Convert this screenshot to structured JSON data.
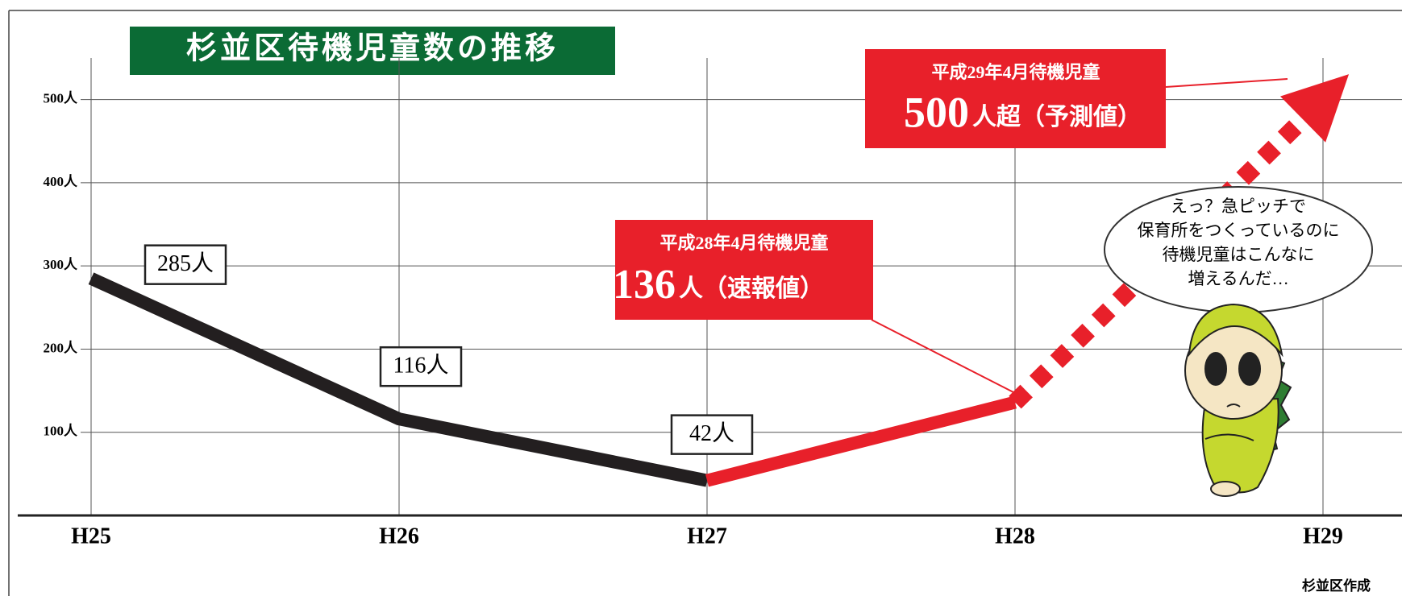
{
  "chart_data": {
    "type": "line",
    "title": "杉並区待機児童数の推移",
    "categories": [
      "H25",
      "H26",
      "H27",
      "H28",
      "H29"
    ],
    "series": [
      {
        "color": "#231f20",
        "values": [
          285,
          116,
          42,
          null,
          null
        ],
        "value_labels": [
          "285人",
          "116人",
          "42人",
          null,
          null
        ]
      },
      {
        "color": "#e8202a",
        "values": [
          null,
          null,
          42,
          136,
          null
        ]
      },
      {
        "color": "#e8202a",
        "dashed": true,
        "arrow": true,
        "values": [
          null,
          null,
          null,
          136,
          500
        ]
      }
    ],
    "ylim": [
      0,
      550
    ],
    "yticks": [
      {
        "value": 100,
        "label": "100人"
      },
      {
        "value": 200,
        "label": "200人"
      },
      {
        "value": 300,
        "label": "300人"
      },
      {
        "value": 400,
        "label": "400人"
      },
      {
        "value": 500,
        "label": "500人"
      }
    ],
    "grid": true,
    "annotations": [
      {
        "label": "平成28年4月待機児童",
        "value": 136,
        "unit": "人（速報値）"
      },
      {
        "label": "平成29年4月待機児童",
        "value": 500,
        "unit": "人超（予測値）"
      }
    ],
    "speech_bubble": [
      "えっ？急ピッチで",
      "保育所をつくっているのに",
      "待機児童はこんなに",
      "増えるんだ…"
    ],
    "credit": "杉並区作成"
  }
}
